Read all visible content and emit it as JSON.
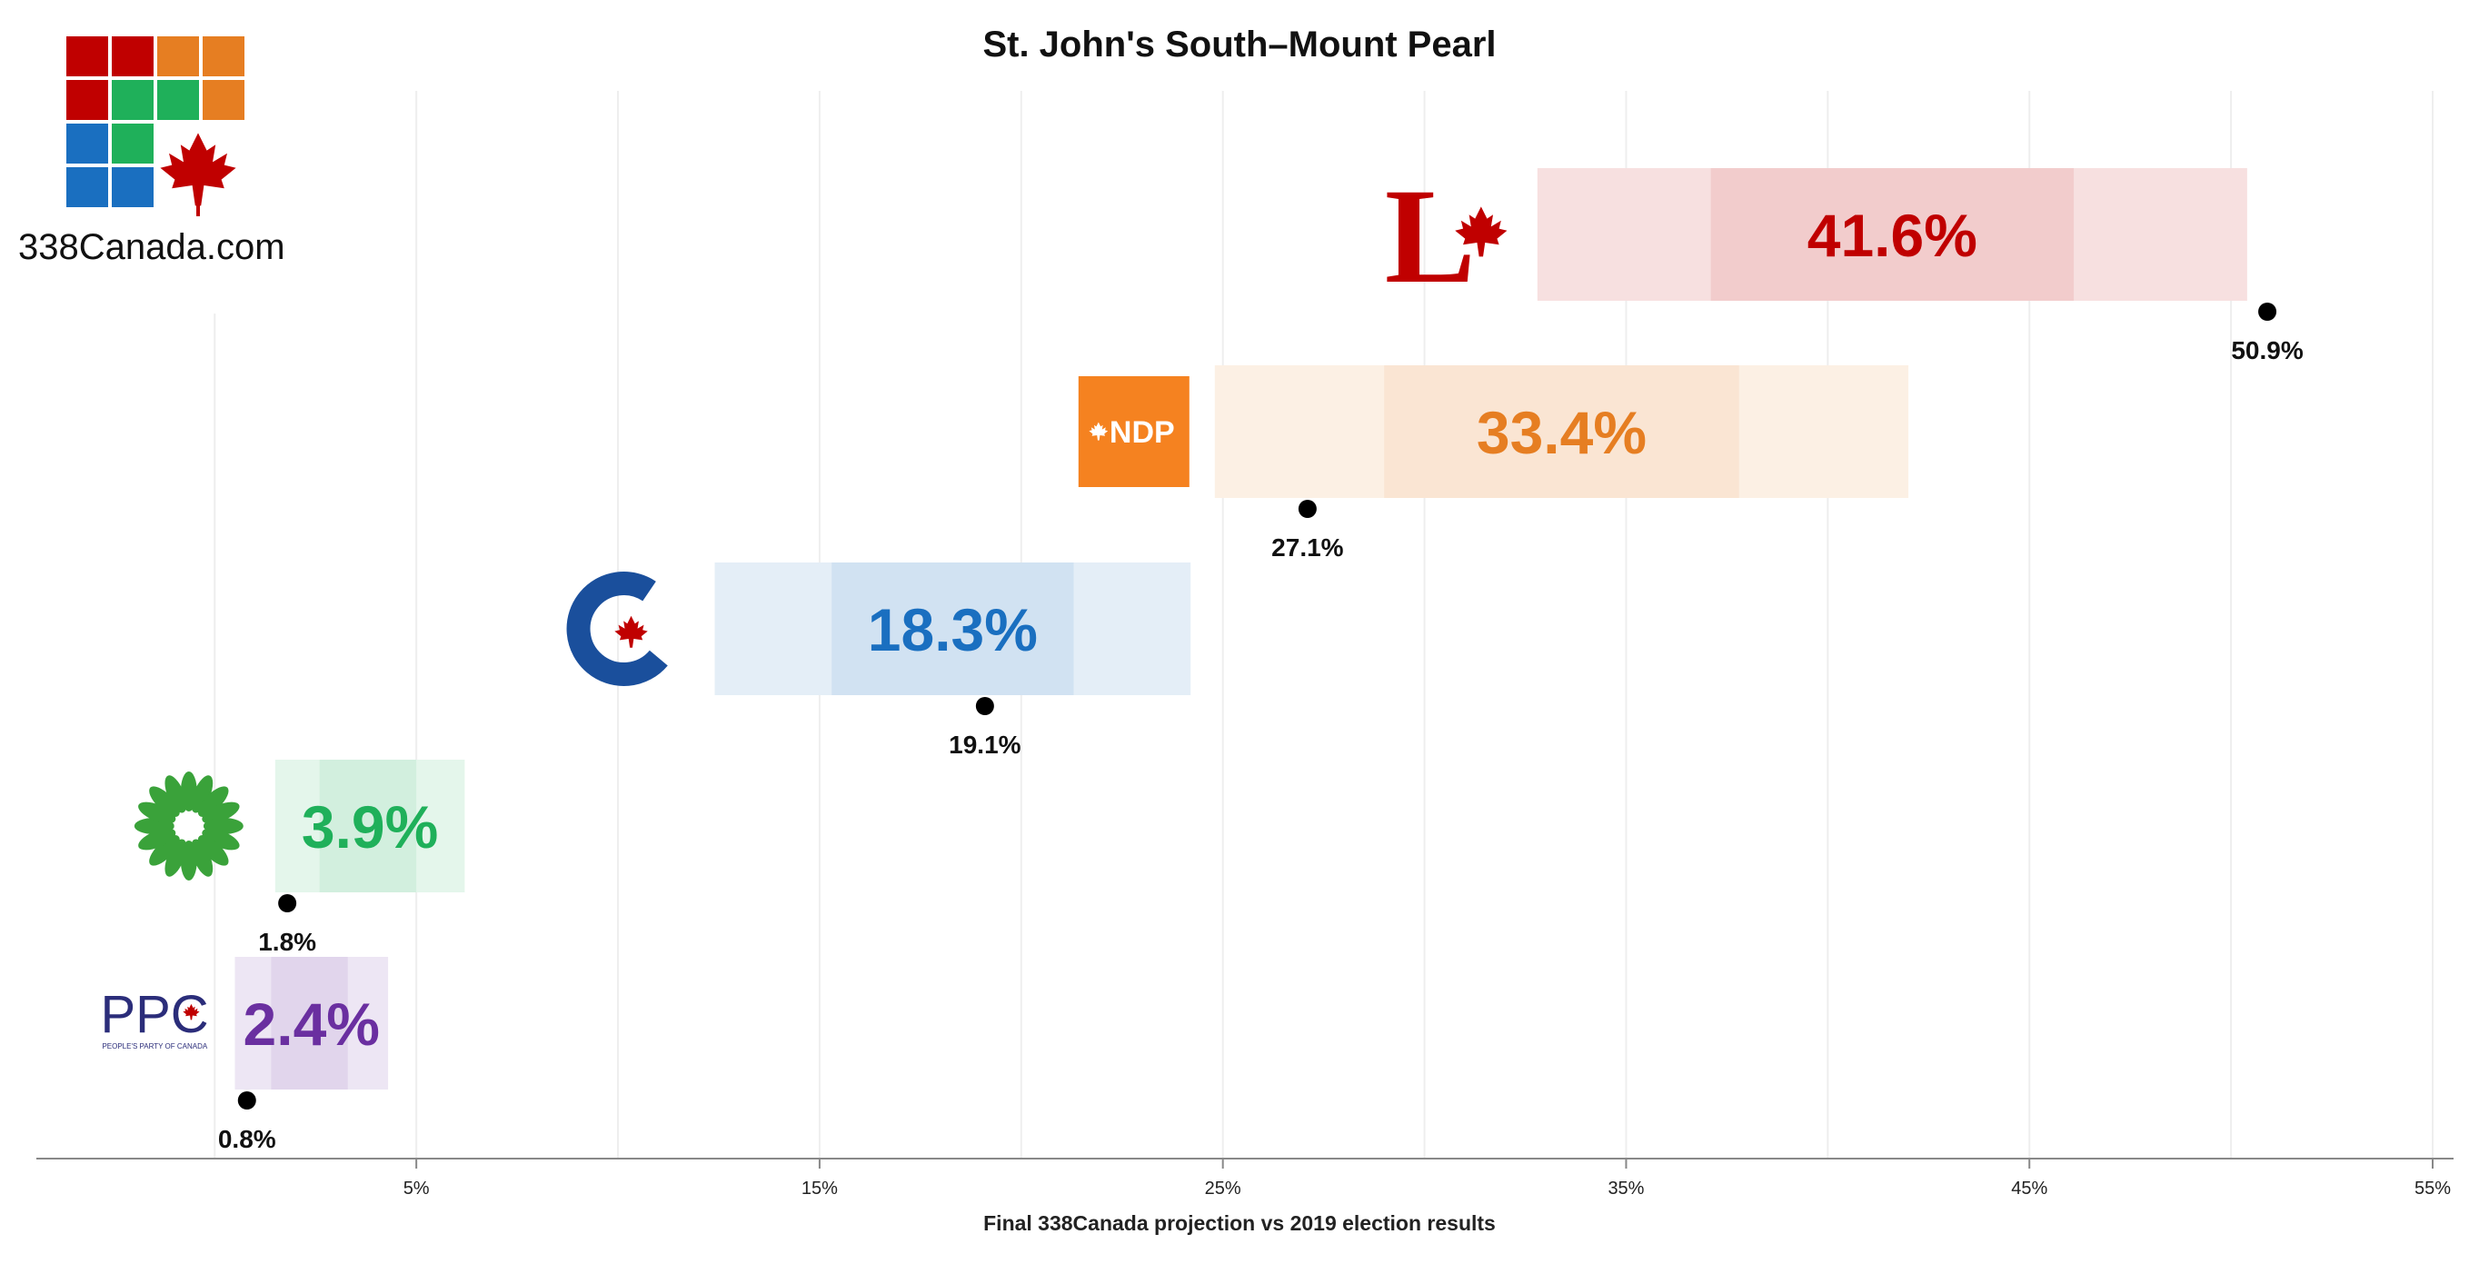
{
  "chart_data": {
    "type": "bar",
    "title": "St. John's South–Mount Pearl",
    "xlabel": "Final 338Canada projection vs 2019 election results",
    "xlim": [
      -4.4,
      55
    ],
    "xticks": [
      5,
      15,
      25,
      35,
      45,
      55
    ],
    "xtick_labels": [
      "5%",
      "15%",
      "25%",
      "35%",
      "45%",
      "55%"
    ],
    "gridlines": [
      0,
      5,
      10,
      15,
      20,
      25,
      30,
      35,
      40,
      45,
      50,
      55
    ],
    "series": [
      {
        "party": "LPC",
        "logo_text": "L",
        "color": "#c00000",
        "projection": 41.6,
        "projection_label": "41.6%",
        "range_outer": [
          32.8,
          50.4
        ],
        "range_inner": [
          37.1,
          46.1
        ],
        "result_2019": 50.9,
        "result_label": "50.9%"
      },
      {
        "party": "NDP",
        "logo_text": "NDP",
        "color": "#e67e22",
        "projection": 33.4,
        "projection_label": "33.4%",
        "range_outer": [
          24.8,
          42.0
        ],
        "range_inner": [
          29.0,
          37.8
        ],
        "result_2019": 27.1,
        "result_label": "27.1%"
      },
      {
        "party": "CPC",
        "logo_text": "",
        "color": "#1a6fc0",
        "projection": 18.3,
        "projection_label": "18.3%",
        "range_outer": [
          12.4,
          24.2
        ],
        "range_inner": [
          15.3,
          21.3
        ],
        "result_2019": 19.1,
        "result_label": "19.1%"
      },
      {
        "party": "GPC",
        "logo_text": "",
        "color": "#1fb05a",
        "projection": 3.9,
        "projection_label": "3.9%",
        "range_outer": [
          1.5,
          6.2
        ],
        "range_inner": [
          2.6,
          5.0
        ],
        "result_2019": 1.8,
        "result_label": "1.8%"
      },
      {
        "party": "PPC",
        "logo_text": "PPC",
        "logo_subtext": "PEOPLE'S PARTY OF CANADA",
        "color": "#6a2fa0",
        "projection": 2.4,
        "projection_label": "2.4%",
        "range_outer": [
          0.5,
          4.3
        ],
        "range_inner": [
          1.4,
          3.3
        ],
        "result_2019": 0.8,
        "result_label": "0.8%"
      }
    ]
  },
  "brand": {
    "site": "338Canada.com"
  },
  "colors": {
    "grid_red": "#c00000",
    "grid_orange": "#e67e22",
    "grid_green": "#1fb05a",
    "grid_blue": "#1a6fc0",
    "maple": "#c00000"
  }
}
